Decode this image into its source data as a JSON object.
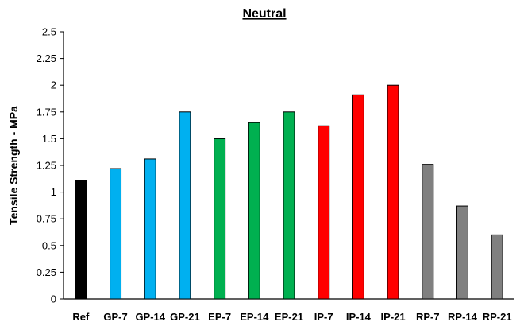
{
  "chart_data": {
    "type": "bar",
    "title": "Neutral",
    "xlabel": "",
    "ylabel": "Tensile Strength - MPa",
    "ylim": [
      0,
      2.5
    ],
    "yticks": [
      "0",
      "0.25",
      "0.5",
      "0.75",
      "1",
      "1.25",
      "1.5",
      "1.75",
      "2",
      "2.25",
      "2.5"
    ],
    "grid": false,
    "categories": [
      "Ref",
      "GP-7",
      "GP-14",
      "GP-21",
      "EP-7",
      "EP-14",
      "EP-21",
      "IP-7",
      "IP-14",
      "IP-21",
      "RP-7",
      "RP-14",
      "RP-21"
    ],
    "values": [
      1.11,
      1.22,
      1.31,
      1.75,
      1.5,
      1.65,
      1.75,
      1.62,
      1.91,
      2.0,
      1.26,
      0.87,
      0.6
    ],
    "colors": [
      "#000000",
      "#00B0F0",
      "#00B0F0",
      "#00B0F0",
      "#00B050",
      "#00B050",
      "#00B050",
      "#FF0000",
      "#FF0000",
      "#FF0000",
      "#808080",
      "#808080",
      "#808080"
    ]
  }
}
